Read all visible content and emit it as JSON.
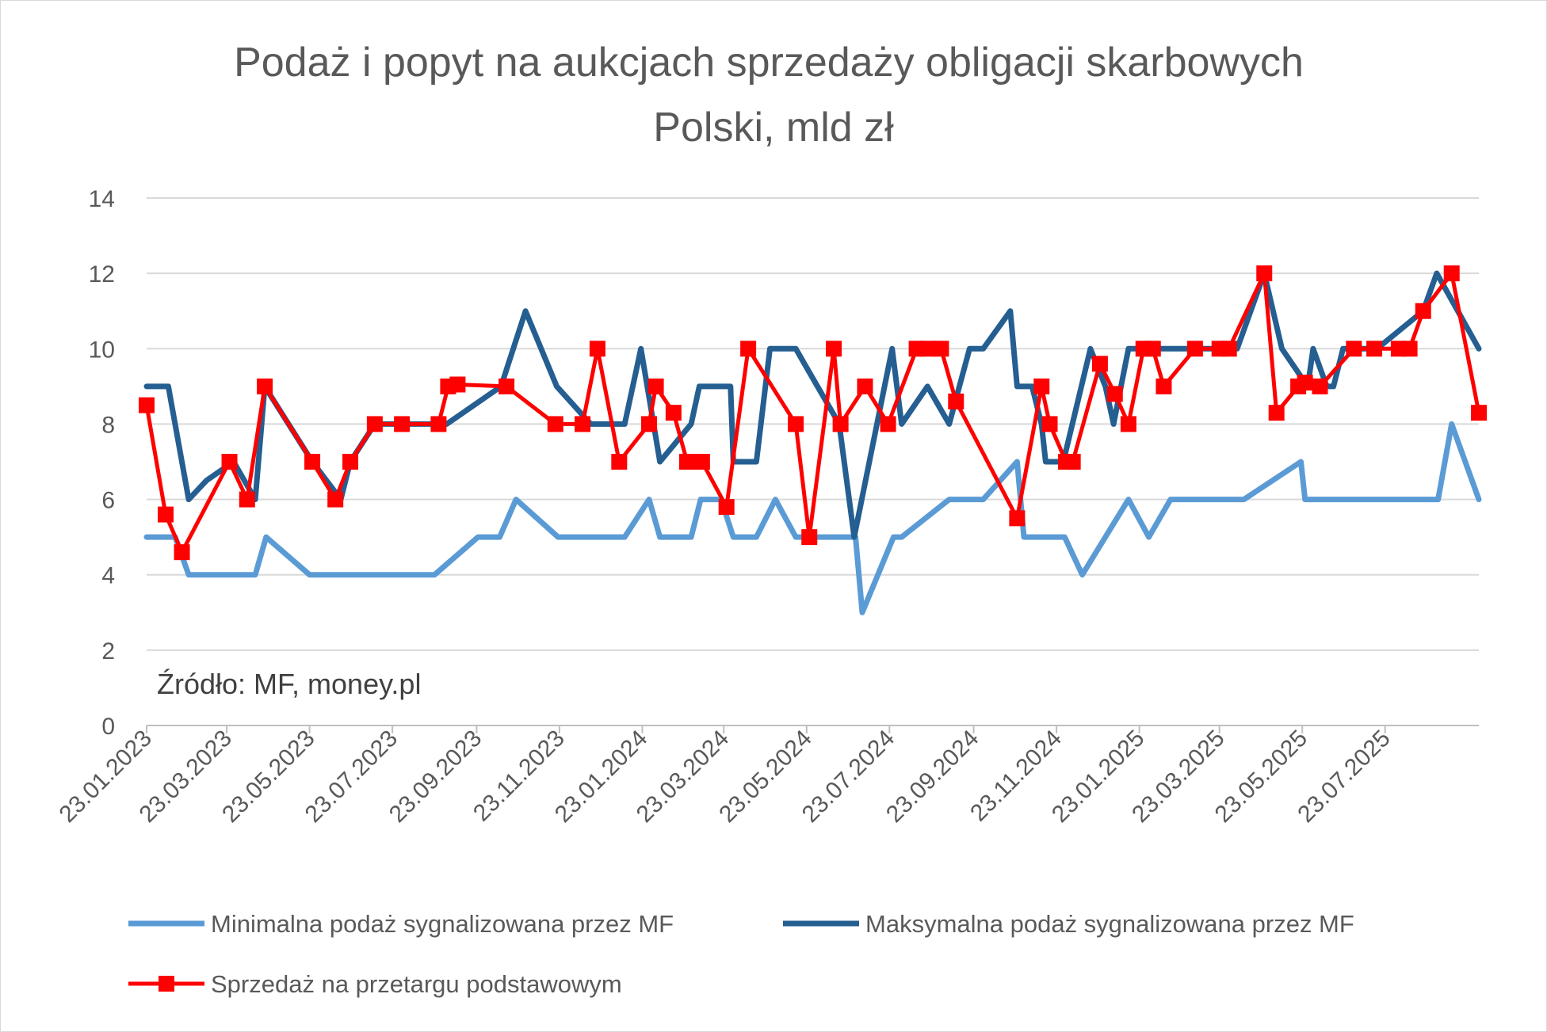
{
  "chart_data": {
    "type": "line",
    "title": "Podaż i popyt na aukcjach sprzedaży obligacji skarbowych Polski, mld zł",
    "title_lines": [
      "Podaż i popyt na aukcjach sprzedaży obligacji skarbowych",
      "Polski, mld zł"
    ],
    "source_note": "Źródło: MF, money.pl",
    "xlabel": "",
    "ylabel": "",
    "ylim": [
      0,
      14
    ],
    "yticks": [
      0,
      2,
      4,
      6,
      8,
      10,
      12,
      14
    ],
    "xlim": [
      "23.01.2023",
      "30.09.2025"
    ],
    "xticks": [
      "23.01.2023",
      "23.03.2023",
      "23.05.2023",
      "23.07.2023",
      "23.09.2023",
      "23.11.2023",
      "23.01.2024",
      "23.03.2024",
      "23.05.2024",
      "23.07.2024",
      "23.09.2024",
      "23.11.2024",
      "23.01.2025",
      "23.03.2025",
      "23.05.2025",
      "23.07.2025"
    ],
    "grid": true,
    "legend_position": "bottom",
    "series": [
      {
        "name": "Minimalna podaż sygnalizowana przez MF",
        "color": "#5b9bd5",
        "marker": "none",
        "points": [
          [
            "23.01.2023",
            5
          ],
          [
            "13.02.2023",
            5
          ],
          [
            "23.02.2023",
            4
          ],
          [
            "09.03.2023",
            4
          ],
          [
            "23.03.2023",
            4
          ],
          [
            "13.04.2023",
            4
          ],
          [
            "21.04.2023",
            5
          ],
          [
            "23.05.2023",
            4
          ],
          [
            "22.06.2023",
            4
          ],
          [
            "27.07.2023",
            4
          ],
          [
            "23.08.2023",
            4
          ],
          [
            "24.09.2023",
            5
          ],
          [
            "10.10.2023",
            5
          ],
          [
            "22.10.2023",
            6
          ],
          [
            "22.11.2023",
            5
          ],
          [
            "17.12.2023",
            5
          ],
          [
            "10.01.2024",
            5
          ],
          [
            "28.01.2024",
            6
          ],
          [
            "05.02.2024",
            5
          ],
          [
            "28.02.2024",
            5
          ],
          [
            "06.03.2024",
            6
          ],
          [
            "21.03.2024",
            6
          ],
          [
            "30.03.2024",
            5
          ],
          [
            "16.04.2024",
            5
          ],
          [
            "30.04.2024",
            6
          ],
          [
            "15.05.2024",
            5
          ],
          [
            "15.06.2024",
            5
          ],
          [
            "28.06.2024",
            5
          ],
          [
            "03.07.2024",
            3
          ],
          [
            "26.07.2024",
            5
          ],
          [
            "01.08.2024",
            5
          ],
          [
            "05.09.2024",
            6
          ],
          [
            "30.09.2024",
            6
          ],
          [
            "25.10.2024",
            7
          ],
          [
            "30.10.2024",
            5
          ],
          [
            "15.11.2024",
            5
          ],
          [
            "29.11.2024",
            5
          ],
          [
            "12.12.2024",
            4
          ],
          [
            "15.01.2025",
            6
          ],
          [
            "30.01.2025",
            5
          ],
          [
            "15.02.2025",
            6
          ],
          [
            "30.03.2025",
            6
          ],
          [
            "10.04.2025",
            6
          ],
          [
            "22.05.2025",
            7
          ],
          [
            "25.05.2025",
            6
          ],
          [
            "12.06.2025",
            6
          ],
          [
            "22.06.2025",
            6
          ],
          [
            "17.07.2025",
            6
          ],
          [
            "30.07.2025",
            6
          ],
          [
            "20.08.2025",
            6
          ],
          [
            "31.08.2025",
            6
          ],
          [
            "10.09.2025",
            8
          ],
          [
            "30.09.2025",
            6
          ]
        ]
      },
      {
        "name": "Maksymalna podaż sygnalizowana przez MF",
        "color": "#255e91",
        "marker": "none",
        "points": [
          [
            "23.01.2023",
            9
          ],
          [
            "08.02.2023",
            9
          ],
          [
            "23.02.2023",
            6
          ],
          [
            "08.03.2023",
            6.5
          ],
          [
            "28.03.2023",
            7
          ],
          [
            "13.04.2023",
            6
          ],
          [
            "20.04.2023",
            9
          ],
          [
            "25.05.2023",
            7
          ],
          [
            "15.06.2023",
            6
          ],
          [
            "22.06.2023",
            7
          ],
          [
            "10.07.2023",
            8
          ],
          [
            "29.07.2023",
            8
          ],
          [
            "10.08.2023",
            8
          ],
          [
            "01.09.2023",
            8
          ],
          [
            "11.10.2023",
            9
          ],
          [
            "29.10.2023",
            11
          ],
          [
            "21.11.2023",
            9
          ],
          [
            "16.12.2023",
            8
          ],
          [
            "10.01.2024",
            8
          ],
          [
            "22.01.2024",
            10
          ],
          [
            "05.02.2024",
            7
          ],
          [
            "28.02.2024",
            8
          ],
          [
            "05.03.2024",
            9
          ],
          [
            "28.03.2024",
            9
          ],
          [
            "30.03.2024",
            7
          ],
          [
            "16.04.2024",
            7
          ],
          [
            "26.04.2024",
            10
          ],
          [
            "15.05.2024",
            10
          ],
          [
            "16.06.2024",
            8
          ],
          [
            "27.06.2024",
            5
          ],
          [
            "25.07.2024",
            10
          ],
          [
            "01.08.2024",
            8
          ],
          [
            "20.08.2024",
            9
          ],
          [
            "05.09.2024",
            8
          ],
          [
            "20.09.2024",
            10
          ],
          [
            "30.09.2024",
            10
          ],
          [
            "20.10.2024",
            11
          ],
          [
            "25.10.2024",
            9
          ],
          [
            "05.11.2024",
            9
          ],
          [
            "12.11.2024",
            8
          ],
          [
            "15.11.2024",
            7
          ],
          [
            "28.11.2024",
            7
          ],
          [
            "18.12.2024",
            10
          ],
          [
            "29.12.2024",
            9
          ],
          [
            "04.01.2025",
            8
          ],
          [
            "15.01.2025",
            10
          ],
          [
            "30.01.2025",
            10
          ],
          [
            "30.03.2025",
            10
          ],
          [
            "05.04.2025",
            10
          ],
          [
            "25.04.2025",
            12
          ],
          [
            "08.05.2025",
            10
          ],
          [
            "27.05.2025",
            9
          ],
          [
            "31.05.2025",
            10
          ],
          [
            "10.06.2025",
            9
          ],
          [
            "15.06.2025",
            9
          ],
          [
            "22.06.2025",
            10
          ],
          [
            "17.07.2025",
            10
          ],
          [
            "20.08.2025",
            11
          ],
          [
            "30.08.2025",
            12
          ],
          [
            "30.09.2025",
            10
          ]
        ]
      },
      {
        "name": "Sprzedaż na przetargu podstawowym",
        "color": "#ff0000",
        "marker": "square",
        "points": [
          [
            "23.01.2023",
            8.5
          ],
          [
            "06.02.2023",
            5.6
          ],
          [
            "18.02.2023",
            4.6
          ],
          [
            "25.03.2023",
            7
          ],
          [
            "07.04.2023",
            6
          ],
          [
            "20.04.2023",
            9
          ],
          [
            "25.05.2023",
            7
          ],
          [
            "11.06.2023",
            6
          ],
          [
            "22.06.2023",
            7
          ],
          [
            "10.07.2023",
            8
          ],
          [
            "30.07.2023",
            8
          ],
          [
            "26.08.2023",
            8
          ],
          [
            "02.09.2023",
            9
          ],
          [
            "09.09.2023",
            9.05
          ],
          [
            "15.10.2023",
            9
          ],
          [
            "20.11.2023",
            8
          ],
          [
            "10.12.2023",
            8
          ],
          [
            "21.12.2023",
            10
          ],
          [
            "06.01.2024",
            7
          ],
          [
            "28.01.2024",
            8
          ],
          [
            "02.02.2024",
            9
          ],
          [
            "15.02.2024",
            8.3
          ],
          [
            "25.02.2024",
            7
          ],
          [
            "07.03.2024",
            7
          ],
          [
            "25.03.2024",
            5.8
          ],
          [
            "10.04.2024",
            10
          ],
          [
            "15.05.2024",
            8
          ],
          [
            "25.05.2024",
            5
          ],
          [
            "12.06.2024",
            10
          ],
          [
            "17.06.2024",
            8
          ],
          [
            "05.07.2024",
            9
          ],
          [
            "22.07.2024",
            8
          ],
          [
            "12.08.2024",
            10
          ],
          [
            "20.08.2024",
            10
          ],
          [
            "30.08.2024",
            10
          ],
          [
            "10.09.2024",
            8.6
          ],
          [
            "25.10.2024",
            5.5
          ],
          [
            "12.11.2024",
            9
          ],
          [
            "18.11.2024",
            8
          ],
          [
            "30.11.2024",
            7
          ],
          [
            "05.12.2024",
            7
          ],
          [
            "25.12.2024",
            9.6
          ],
          [
            "05.01.2025",
            8.8
          ],
          [
            "15.01.2025",
            8
          ],
          [
            "26.01.2025",
            10
          ],
          [
            "02.02.2025",
            10
          ],
          [
            "10.02.2025",
            9
          ],
          [
            "05.03.2025",
            10
          ],
          [
            "23.03.2025",
            10
          ],
          [
            "30.03.2025",
            10
          ],
          [
            "25.04.2025",
            12
          ],
          [
            "04.05.2025",
            8.3
          ],
          [
            "20.05.2025",
            9
          ],
          [
            "25.05.2025",
            9.1
          ],
          [
            "05.06.2025",
            9
          ],
          [
            "30.06.2025",
            10
          ],
          [
            "15.07.2025",
            10
          ],
          [
            "02.08.2025",
            10
          ],
          [
            "10.08.2025",
            10
          ],
          [
            "20.08.2025",
            11
          ],
          [
            "10.09.2025",
            12
          ],
          [
            "30.09.2025",
            8.3
          ]
        ]
      }
    ]
  }
}
